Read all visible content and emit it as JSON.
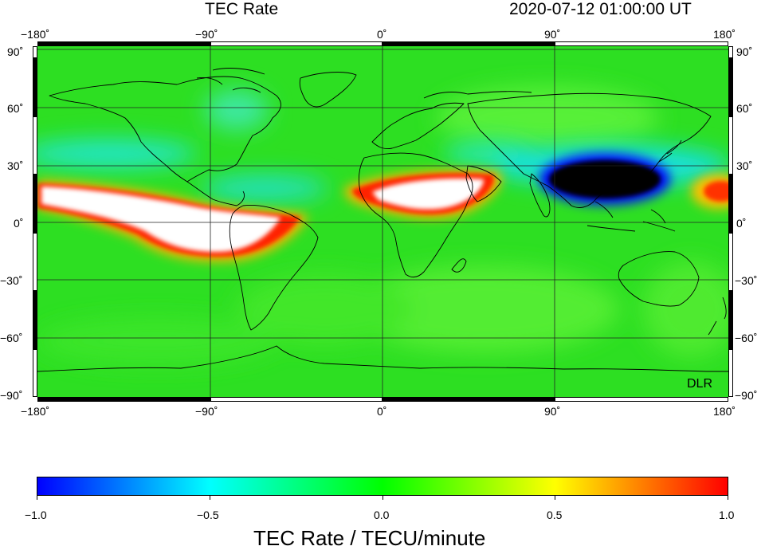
{
  "header": {
    "title": "TEC Rate",
    "timestamp": "2020-07-12  01:00:00 UT"
  },
  "map": {
    "lon_ticks": [
      "−180˚",
      "−90˚",
      "0˚",
      "90˚",
      "180˚"
    ],
    "lat_ticks": [
      "90˚",
      "60˚",
      "30˚",
      "0˚",
      "−30˚",
      "−60˚",
      "−90˚"
    ],
    "credit": "DLR"
  },
  "colorbar": {
    "tick_labels": [
      "−1.0",
      "−0.5",
      "0.0",
      "0.5",
      "1.0"
    ],
    "label": "TEC Rate / TECU/minute",
    "colors": [
      "#0000ff",
      "#00ffff",
      "#00ff00",
      "#ffff00",
      "#ff0000"
    ],
    "min": -1.0,
    "max": 1.0
  }
}
